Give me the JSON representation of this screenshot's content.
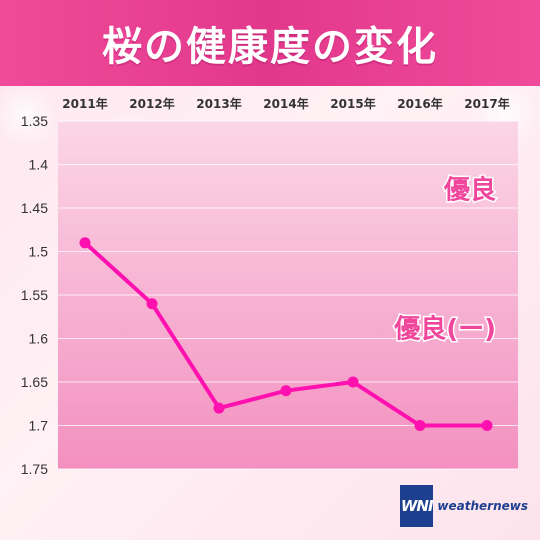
{
  "title": "桜の健康度の変化",
  "colors": {
    "title_bar": "#e83e93",
    "plot_bg_top": "#fad1e3",
    "plot_bg_bottom": "#f38cbc",
    "line": "#ff11b0",
    "band_label": "#f0479c",
    "logo": "#1d3f8f"
  },
  "bands": [
    {
      "label": "優良",
      "value": 1.425
    },
    {
      "label": "優良(ー)",
      "value": 1.585
    }
  ],
  "logo": {
    "mark": "WNI",
    "text": "weathernews",
    "icon": "weathernews-logo-icon"
  },
  "chart_data": {
    "type": "line",
    "categories": [
      "2011年",
      "2012年",
      "2013年",
      "2014年",
      "2015年",
      "2016年",
      "2017年"
    ],
    "series": [
      {
        "values": [
          1.49,
          1.56,
          1.68,
          1.66,
          1.65,
          1.7,
          1.7
        ]
      }
    ],
    "y_ticks": [
      "1.35",
      "1.4",
      "1.45",
      "1.5",
      "1.55",
      "1.6",
      "1.65",
      "1.7",
      "1.75"
    ],
    "ylim": [
      1.35,
      1.75
    ],
    "y_reversed": true,
    "x_axis_position": "top",
    "grid": true,
    "legend": "none"
  }
}
